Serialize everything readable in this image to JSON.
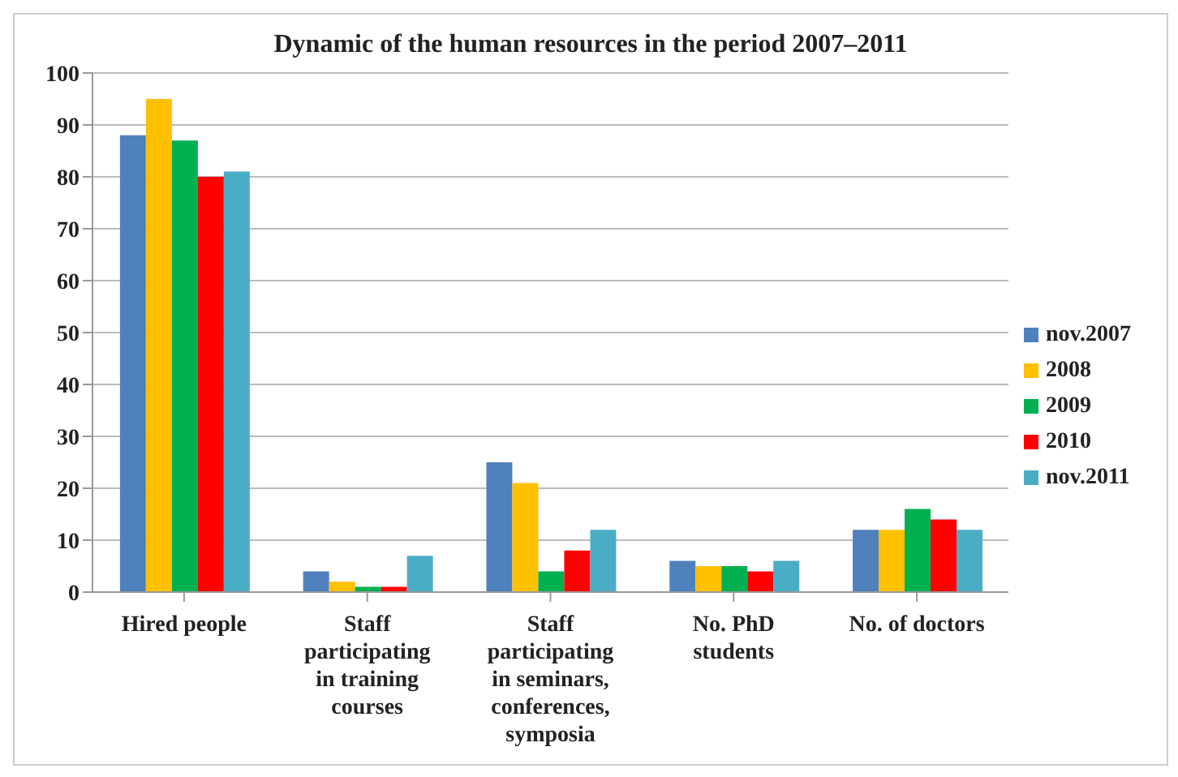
{
  "chart_data": {
    "type": "bar",
    "title": "Dynamic of the human resources in the period 2007–2011",
    "categories": [
      "Hired people",
      "Staff participating in  training courses",
      "Staff participating in seminars, conferences, symposia",
      "No. PhD students",
      "No. of doctors"
    ],
    "series": [
      {
        "name": "nov.2007",
        "color": "#4f81bd",
        "values": [
          88,
          4,
          25,
          6,
          12
        ]
      },
      {
        "name": "2008",
        "color": "#ffc000",
        "values": [
          95,
          2,
          21,
          5,
          12
        ]
      },
      {
        "name": "2009",
        "color": "#00b050",
        "values": [
          87,
          1,
          4,
          5,
          16
        ]
      },
      {
        "name": "2010",
        "color": "#ff0000",
        "values": [
          80,
          1,
          8,
          4,
          14
        ]
      },
      {
        "name": "nov.2011",
        "color": "#4bacc6",
        "values": [
          81,
          7,
          12,
          6,
          12
        ]
      }
    ],
    "ylim": [
      0,
      100
    ],
    "yticks": [
      0,
      10,
      20,
      30,
      40,
      50,
      60,
      70,
      80,
      90,
      100
    ],
    "grid": "y",
    "legend": "right"
  }
}
